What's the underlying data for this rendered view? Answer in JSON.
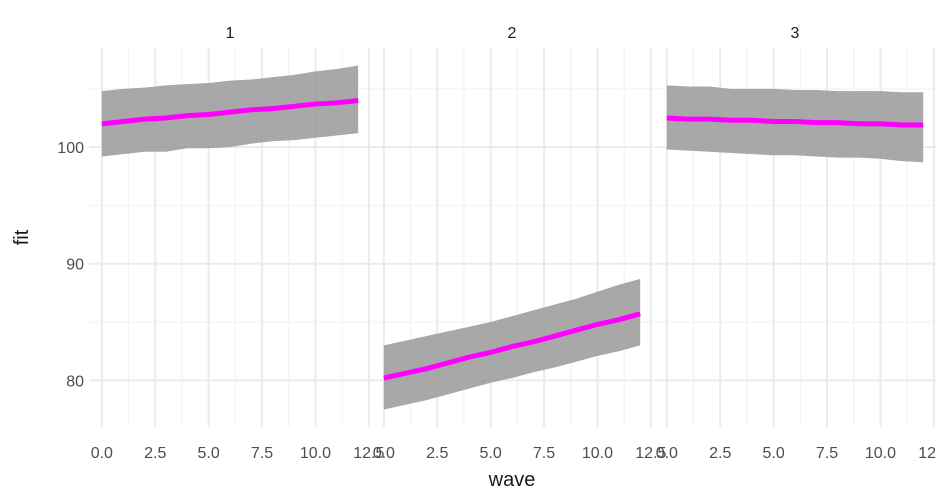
{
  "chart_data": {
    "type": "line",
    "xlabel": "wave",
    "ylabel": "fit",
    "xlim": [
      -0.6,
      12.6
    ],
    "ylim": [
      76,
      108.5
    ],
    "x_ticks": [
      "0.0",
      "2.5",
      "5.0",
      "7.5",
      "10.0",
      "12.5"
    ],
    "x_tick_values": [
      0,
      2.5,
      5,
      7.5,
      10,
      12.5
    ],
    "y_ticks": [
      "80",
      "90",
      "100"
    ],
    "y_tick_values": [
      80,
      90,
      100
    ],
    "grid": true,
    "line_color": "#ff00ff",
    "ribbon_color": "#999999",
    "panels": [
      {
        "strip": "1",
        "x": [
          0,
          1,
          2,
          3,
          4,
          5,
          6,
          7,
          8,
          9,
          10,
          11,
          12
        ],
        "fit": [
          102.0,
          102.2,
          102.4,
          102.5,
          102.7,
          102.8,
          103.0,
          103.2,
          103.3,
          103.5,
          103.7,
          103.8,
          104.0
        ],
        "lower": [
          99.2,
          99.4,
          99.6,
          99.6,
          99.9,
          99.9,
          100.0,
          100.3,
          100.5,
          100.6,
          100.8,
          101.0,
          101.2
        ],
        "upper": [
          104.8,
          105.0,
          105.1,
          105.3,
          105.4,
          105.5,
          105.7,
          105.8,
          106.0,
          106.2,
          106.5,
          106.7,
          107.0
        ]
      },
      {
        "strip": "2",
        "x": [
          0,
          1,
          2,
          3,
          4,
          5,
          6,
          7,
          8,
          9,
          10,
          11,
          12
        ],
        "fit": [
          80.2,
          80.6,
          81.0,
          81.5,
          82.0,
          82.4,
          82.9,
          83.3,
          83.8,
          84.3,
          84.8,
          85.2,
          85.7
        ],
        "lower": [
          77.5,
          77.9,
          78.3,
          78.8,
          79.3,
          79.8,
          80.2,
          80.7,
          81.1,
          81.6,
          82.1,
          82.5,
          83.0
        ],
        "upper": [
          83.0,
          83.4,
          83.8,
          84.2,
          84.6,
          85.0,
          85.5,
          86.0,
          86.5,
          87.0,
          87.6,
          88.2,
          88.7
        ]
      },
      {
        "strip": "3",
        "x": [
          0,
          1,
          2,
          3,
          4,
          5,
          6,
          7,
          8,
          9,
          10,
          11,
          12
        ],
        "fit": [
          102.5,
          102.4,
          102.4,
          102.3,
          102.3,
          102.2,
          102.2,
          102.1,
          102.1,
          102.0,
          102.0,
          101.9,
          101.9
        ],
        "lower": [
          99.8,
          99.7,
          99.6,
          99.5,
          99.4,
          99.3,
          99.3,
          99.2,
          99.1,
          99.1,
          99.0,
          98.8,
          98.7
        ],
        "upper": [
          105.3,
          105.2,
          105.2,
          105.0,
          105.0,
          105.0,
          104.9,
          104.9,
          104.8,
          104.8,
          104.8,
          104.7,
          104.7
        ]
      }
    ]
  }
}
